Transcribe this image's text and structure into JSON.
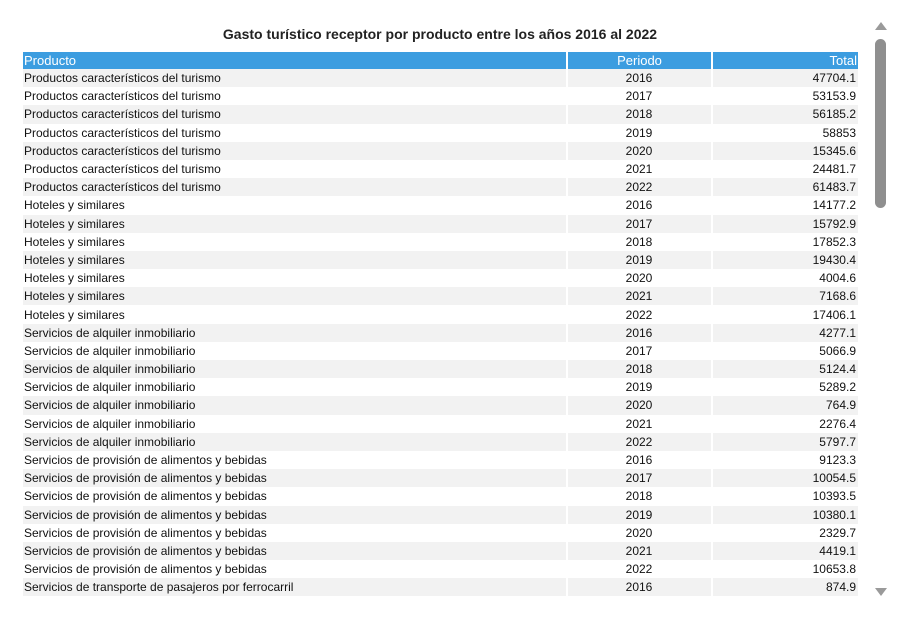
{
  "chart_data": {
    "type": "table",
    "title": "Gasto turístico receptor por producto entre los años 2016 al 2022",
    "columns": [
      "Producto",
      "Periodo",
      "Total"
    ],
    "rows": [
      [
        "Productos característicos del turismo",
        "2016",
        "47704.1"
      ],
      [
        "Productos característicos del turismo",
        "2017",
        "53153.9"
      ],
      [
        "Productos característicos del turismo",
        "2018",
        "56185.2"
      ],
      [
        "Productos característicos del turismo",
        "2019",
        "58853"
      ],
      [
        "Productos característicos del turismo",
        "2020",
        "15345.6"
      ],
      [
        "Productos característicos del turismo",
        "2021",
        "24481.7"
      ],
      [
        "Productos característicos del turismo",
        "2022",
        "61483.7"
      ],
      [
        "Hoteles y similares",
        "2016",
        "14177.2"
      ],
      [
        "Hoteles y similares",
        "2017",
        "15792.9"
      ],
      [
        "Hoteles y similares",
        "2018",
        "17852.3"
      ],
      [
        "Hoteles y similares",
        "2019",
        "19430.4"
      ],
      [
        "Hoteles y similares",
        "2020",
        "4004.6"
      ],
      [
        "Hoteles y similares",
        "2021",
        "7168.6"
      ],
      [
        "Hoteles y similares",
        "2022",
        "17406.1"
      ],
      [
        "Servicios de alquiler inmobiliario",
        "2016",
        "4277.1"
      ],
      [
        "Servicios de alquiler inmobiliario",
        "2017",
        "5066.9"
      ],
      [
        "Servicios de alquiler inmobiliario",
        "2018",
        "5124.4"
      ],
      [
        "Servicios de alquiler inmobiliario",
        "2019",
        "5289.2"
      ],
      [
        "Servicios de alquiler inmobiliario",
        "2020",
        "764.9"
      ],
      [
        "Servicios de alquiler inmobiliario",
        "2021",
        "2276.4"
      ],
      [
        "Servicios de alquiler inmobiliario",
        "2022",
        "5797.7"
      ],
      [
        "Servicios de provisión de alimentos y bebidas",
        "2016",
        "9123.3"
      ],
      [
        "Servicios de provisión de alimentos y bebidas",
        "2017",
        "10054.5"
      ],
      [
        "Servicios de provisión de alimentos y bebidas",
        "2018",
        "10393.5"
      ],
      [
        "Servicios de provisión de alimentos y bebidas",
        "2019",
        "10380.1"
      ],
      [
        "Servicios de provisión de alimentos y bebidas",
        "2020",
        "2329.7"
      ],
      [
        "Servicios de provisión de alimentos y bebidas",
        "2021",
        "4419.1"
      ],
      [
        "Servicios de provisión de alimentos y bebidas",
        "2022",
        "10653.8"
      ],
      [
        "Servicios de transporte de pasajeros por ferrocarril",
        "2016",
        "874.9"
      ]
    ],
    "header_color": "#3c9de0",
    "stripe_color": "#f2f2f2"
  },
  "scrollbar": {
    "up_icon": "triangle-up-icon",
    "down_icon": "triangle-down-icon"
  }
}
